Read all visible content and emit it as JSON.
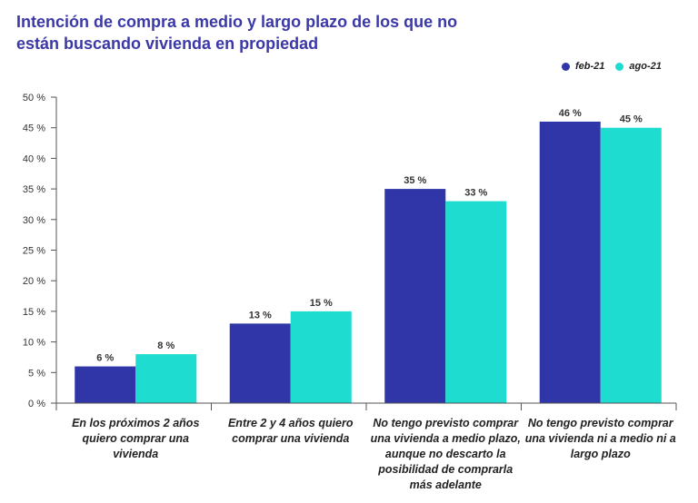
{
  "chart_data": {
    "type": "bar",
    "title": "Intención de compra a medio y largo plazo de los que no están buscando vivienda en propiedad",
    "categories": [
      "En los próximos 2 años quiero comprar una vivienda",
      "Entre 2 y 4 años quiero comprar una vivienda",
      "No tengo previsto comprar una vivienda  a medio plazo, aunque no descarto la posibilidad de comprarla más adelante",
      "No tengo previsto comprar una vivienda ni a medio ni a largo plazo"
    ],
    "series": [
      {
        "name": "feb-21",
        "color": "#3035a8",
        "values": [
          6,
          13,
          35,
          46
        ],
        "labels": [
          "6 %",
          "13 %",
          "35 %",
          "46 %"
        ]
      },
      {
        "name": "ago-21",
        "color": "#1fdcd0",
        "values": [
          8,
          15,
          33,
          45
        ],
        "labels": [
          "8 %",
          "15 %",
          "33 %",
          "45 %"
        ]
      }
    ],
    "ylim": [
      0,
      50
    ],
    "yticks": [
      0,
      5,
      10,
      15,
      20,
      25,
      30,
      35,
      40,
      45,
      50
    ],
    "ytick_labels": [
      "0 %",
      "5 %",
      "10 %",
      "15 %",
      "20 %",
      "25 %",
      "30 %",
      "35 %",
      "40 %",
      "45 %",
      "50 %"
    ],
    "xlabel": "",
    "ylabel": "",
    "grid": false,
    "legend_position": "top-right"
  }
}
